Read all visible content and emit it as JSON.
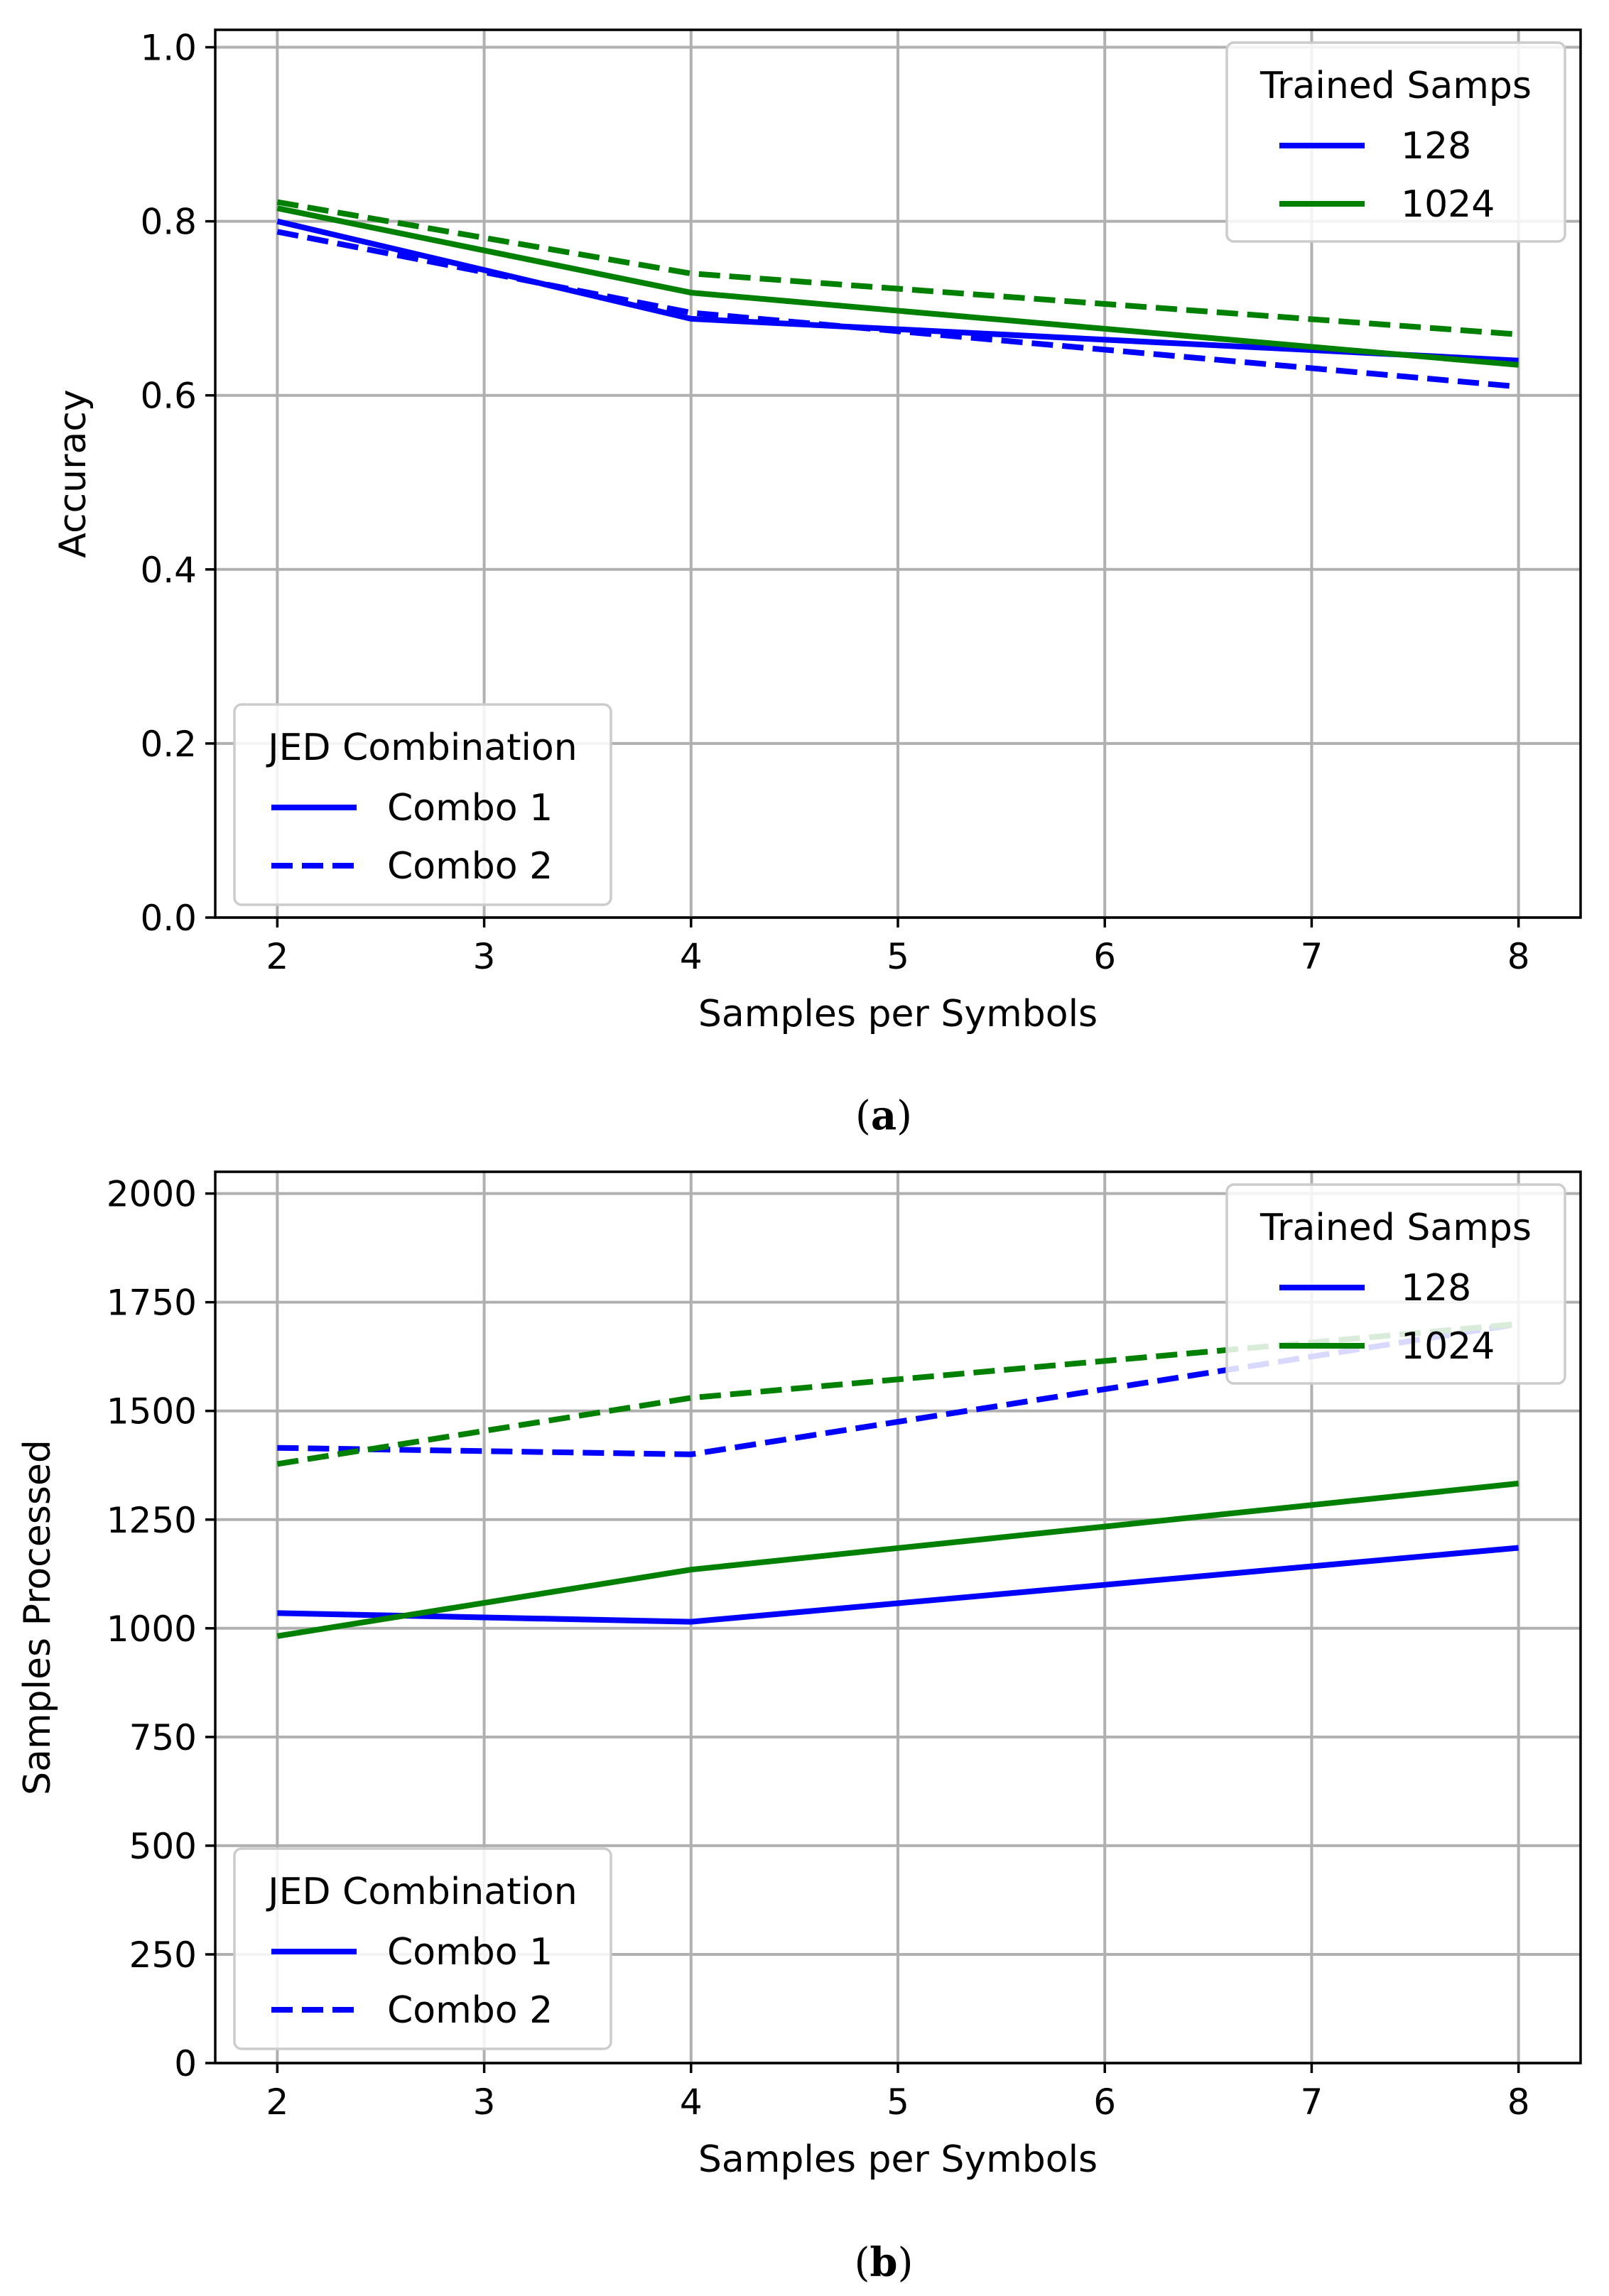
{
  "chart_data": [
    {
      "type": "line",
      "id": "a",
      "caption_letter": "a",
      "xlabel": "Samples per Symbols",
      "ylabel": "Accuracy",
      "xlim": [
        1.7,
        8.3
      ],
      "ylim": [
        0.0,
        1.02
      ],
      "xticks": [
        2,
        3,
        4,
        5,
        6,
        7,
        8
      ],
      "xtick_labels": [
        "2",
        "3",
        "4",
        "5",
        "6",
        "7",
        "8"
      ],
      "yticks": [
        0.0,
        0.2,
        0.4,
        0.6,
        0.8,
        1.0
      ],
      "ytick_labels": [
        "0.0",
        "0.2",
        "0.4",
        "0.6",
        "0.8",
        "1.0"
      ],
      "grid": true,
      "legend_samps": {
        "placement": "top-right",
        "title": "Trained Samps",
        "entries": [
          {
            "label": "128",
            "color": "#0000ff"
          },
          {
            "label": "1024",
            "color": "#008000"
          }
        ]
      },
      "legend_combo": {
        "placement": "bottom-left",
        "title": "JED Combination",
        "entries": [
          {
            "label": "Combo 1",
            "style": "solid"
          },
          {
            "label": "Combo 2",
            "style": "dashed"
          }
        ]
      },
      "series": [
        {
          "name": "128 Combo 1",
          "color": "#0000ff",
          "style": "solid",
          "x": [
            2,
            4,
            8
          ],
          "y": [
            0.8,
            0.688,
            0.64
          ]
        },
        {
          "name": "128 Combo 2",
          "color": "#0000ff",
          "style": "dashed",
          "x": [
            2,
            4,
            8
          ],
          "y": [
            0.788,
            0.695,
            0.61
          ]
        },
        {
          "name": "1024 Combo 1",
          "color": "#008000",
          "style": "solid",
          "x": [
            2,
            4,
            8
          ],
          "y": [
            0.815,
            0.718,
            0.635
          ]
        },
        {
          "name": "1024 Combo 2",
          "color": "#008000",
          "style": "dashed",
          "x": [
            2,
            4,
            8
          ],
          "y": [
            0.822,
            0.74,
            0.67
          ]
        }
      ]
    },
    {
      "type": "line",
      "id": "b",
      "caption_letter": "b",
      "xlabel": "Samples per Symbols",
      "ylabel": "Samples Processed",
      "xlim": [
        1.7,
        8.3
      ],
      "ylim": [
        0,
        2050
      ],
      "xticks": [
        2,
        3,
        4,
        5,
        6,
        7,
        8
      ],
      "xtick_labels": [
        "2",
        "3",
        "4",
        "5",
        "6",
        "7",
        "8"
      ],
      "yticks": [
        0,
        250,
        500,
        750,
        1000,
        1250,
        1500,
        1750,
        2000
      ],
      "ytick_labels": [
        "0",
        "250",
        "500",
        "750",
        "1000",
        "1250",
        "1500",
        "1750",
        "2000"
      ],
      "grid": true,
      "legend_samps": {
        "placement": "top-right",
        "title": "Trained Samps",
        "entries": [
          {
            "label": "128",
            "color": "#0000ff"
          },
          {
            "label": "1024",
            "color": "#008000"
          }
        ]
      },
      "legend_combo": {
        "placement": "bottom-left",
        "title": "JED Combination",
        "entries": [
          {
            "label": "Combo 1",
            "style": "solid"
          },
          {
            "label": "Combo 2",
            "style": "dashed"
          }
        ]
      },
      "series": [
        {
          "name": "128 Combo 1",
          "color": "#0000ff",
          "style": "solid",
          "x": [
            2,
            4,
            8
          ],
          "y": [
            1035,
            1015,
            1185
          ]
        },
        {
          "name": "128 Combo 2",
          "color": "#0000ff",
          "style": "dashed",
          "x": [
            2,
            4,
            8
          ],
          "y": [
            1415,
            1400,
            1700
          ]
        },
        {
          "name": "1024 Combo 1",
          "color": "#008000",
          "style": "solid",
          "x": [
            2,
            4,
            8
          ],
          "y": [
            982,
            1135,
            1333
          ]
        },
        {
          "name": "1024 Combo 2",
          "color": "#008000",
          "style": "dashed",
          "x": [
            2,
            4,
            8
          ],
          "y": [
            1378,
            1530,
            1700
          ]
        }
      ]
    }
  ]
}
